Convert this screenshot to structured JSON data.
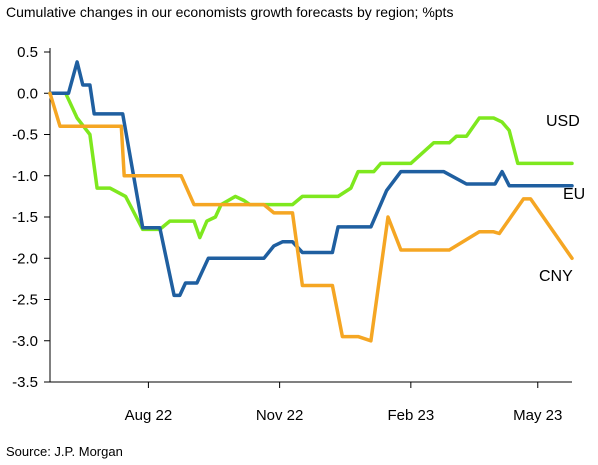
{
  "title": "Cumulative changes in our economists growth forecasts by region; %pts",
  "source": "Source: J.P. Morgan",
  "chart_data": {
    "type": "line",
    "title": "Cumulative changes in our economists growth forecasts by region; %pts",
    "ylim": [
      -3.5,
      0.5
    ],
    "xlim": [
      "2022-05-24",
      "2023-05-25"
    ],
    "y_ticks": [
      0.5,
      0.0,
      -0.5,
      -1.0,
      -1.5,
      -2.0,
      -2.5,
      -3.0,
      -3.5
    ],
    "y_tick_labels": [
      "0.5",
      "0.0",
      "-0.5",
      "-1.0",
      "-1.5",
      "-2.0",
      "-2.5",
      "-3.0",
      "-3.5"
    ],
    "x_ticks": [
      {
        "date": "2022-08-01",
        "label": "Aug 22"
      },
      {
        "date": "2022-11-01",
        "label": "Nov 22"
      },
      {
        "date": "2023-02-01",
        "label": "Feb 23"
      },
      {
        "date": "2023-05-01",
        "label": "May 23"
      }
    ],
    "grid": false,
    "series": [
      {
        "name": "USD",
        "color": "#7ee81e",
        "step": true,
        "x": [
          "2022-05-24",
          "2022-06-04",
          "2022-06-12",
          "2022-06-21",
          "2022-06-26",
          "2022-07-05",
          "2022-07-16",
          "2022-07-28",
          "2022-07-31",
          "2022-08-09",
          "2022-08-16",
          "2022-09-02",
          "2022-09-06",
          "2022-09-11",
          "2022-09-17",
          "2022-09-21",
          "2022-10-01",
          "2022-10-07",
          "2022-10-11",
          "2022-11-10",
          "2022-11-17",
          "2022-12-12",
          "2022-12-21",
          "2022-12-26",
          "2023-01-06",
          "2023-01-11",
          "2023-01-15",
          "2023-01-25",
          "2023-02-01",
          "2023-02-17",
          "2023-02-28",
          "2023-03-05",
          "2023-03-12",
          "2023-03-21",
          "2023-03-31",
          "2023-04-06",
          "2023-04-11",
          "2023-04-17",
          "2023-05-25"
        ],
        "values": [
          0.0,
          0.0,
          -0.3,
          -0.5,
          -1.15,
          -1.15,
          -1.25,
          -1.65,
          -1.65,
          -1.65,
          -1.55,
          -1.55,
          -1.75,
          -1.55,
          -1.5,
          -1.35,
          -1.25,
          -1.3,
          -1.35,
          -1.35,
          -1.25,
          -1.25,
          -1.15,
          -0.95,
          -0.95,
          -0.85,
          -0.85,
          -0.85,
          -0.85,
          -0.6,
          -0.6,
          -0.52,
          -0.52,
          -0.3,
          -0.3,
          -0.35,
          -0.45,
          -0.85,
          -0.85
        ]
      },
      {
        "name": "EU",
        "color": "#1f5fa0",
        "step": true,
        "x": [
          "2022-05-24",
          "2022-06-06",
          "2022-06-12",
          "2022-06-16",
          "2022-06-21",
          "2022-06-24",
          "2022-07-14",
          "2022-07-28",
          "2022-08-09",
          "2022-08-19",
          "2022-08-23",
          "2022-08-27",
          "2022-09-04",
          "2022-09-12",
          "2022-09-25",
          "2022-10-21",
          "2022-10-28",
          "2022-11-03",
          "2022-11-10",
          "2022-11-17",
          "2022-12-08",
          "2022-12-12",
          "2023-01-04",
          "2023-01-15",
          "2023-01-25",
          "2023-02-04",
          "2023-02-24",
          "2023-03-12",
          "2023-04-01",
          "2023-04-06",
          "2023-04-11",
          "2023-05-25"
        ],
        "values": [
          0.0,
          0.0,
          0.38,
          0.1,
          0.1,
          -0.25,
          -0.25,
          -1.63,
          -1.63,
          -2.45,
          -2.45,
          -2.3,
          -2.3,
          -2.0,
          -2.0,
          -2.0,
          -1.85,
          -1.8,
          -1.8,
          -1.93,
          -1.93,
          -1.62,
          -1.62,
          -1.18,
          -0.95,
          -0.95,
          -0.95,
          -1.1,
          -1.1,
          -0.95,
          -1.12,
          -1.12
        ]
      },
      {
        "name": "CNY",
        "color": "#f5a623",
        "step": true,
        "x": [
          "2022-05-24",
          "2022-05-31",
          "2022-06-30",
          "2022-07-08",
          "2022-07-13",
          "2022-07-15",
          "2022-08-09",
          "2022-08-24",
          "2022-09-02",
          "2022-09-07",
          "2022-09-11",
          "2022-10-21",
          "2022-10-28",
          "2022-11-10",
          "2022-11-17",
          "2022-11-28",
          "2022-12-08",
          "2022-12-15",
          "2022-12-26",
          "2023-01-04",
          "2023-01-16",
          "2023-01-25",
          "2023-02-21",
          "2023-02-28",
          "2023-03-21",
          "2023-03-31",
          "2023-04-04",
          "2023-04-21",
          "2023-04-26",
          "2023-05-25"
        ],
        "values": [
          0.0,
          -0.4,
          -0.4,
          -0.4,
          -0.4,
          -1.0,
          -1.0,
          -1.0,
          -1.35,
          -1.35,
          -1.35,
          -1.35,
          -1.45,
          -1.45,
          -2.33,
          -2.33,
          -2.33,
          -2.95,
          -2.95,
          -3.0,
          -1.5,
          -1.9,
          -1.9,
          -1.9,
          -1.68,
          -1.68,
          -1.7,
          -1.28,
          -1.28,
          -2.0
        ]
      }
    ],
    "labels": [
      "USD",
      "EU",
      "CNY"
    ]
  }
}
